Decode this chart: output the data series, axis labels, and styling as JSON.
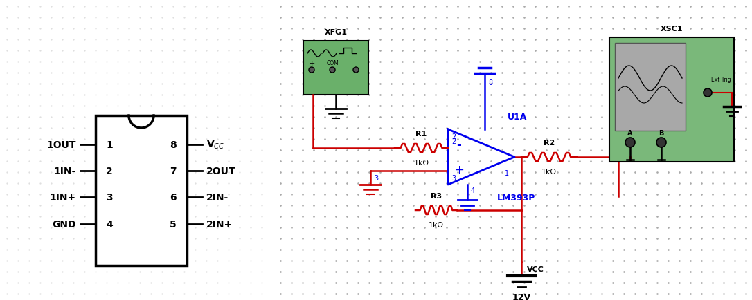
{
  "fig_width": 10.86,
  "fig_height": 4.35,
  "blue": "#0000ee",
  "red": "#cc0000",
  "black": "#000000",
  "green_bg": "#7ab87a",
  "gray_screen": "#a8a8a8",
  "dot_color_right": "#999999",
  "dot_color_left": "#cccccc",
  "xfg1_label": "XFG1",
  "xsc1_label": "XSC1",
  "u1a_label": "U1A",
  "lm393p_label": "LM393P",
  "r1_label": "R1",
  "r2_label": "R2",
  "r3_label": "R3",
  "r_val": "1kΩ",
  "vcc_label": "VCC",
  "v12_label": "12V"
}
